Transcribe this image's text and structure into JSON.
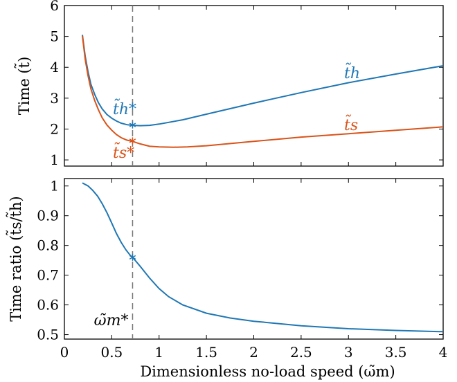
{
  "chart_data": [
    {
      "type": "line",
      "title": "",
      "xlabel": "",
      "ylabel": "Time  (t̃)",
      "xlim": [
        0,
        4
      ],
      "ylim": [
        0.8,
        6
      ],
      "yticks": [
        "1",
        "2",
        "3",
        "4",
        "5",
        "6"
      ],
      "grid": false,
      "legend": "none",
      "marker_x": 0.72,
      "series": [
        {
          "name": "t̃h",
          "color": "#1f77b4",
          "points": [
            [
              0.19,
              5.05
            ],
            [
              0.22,
              4.35
            ],
            [
              0.25,
              3.85
            ],
            [
              0.28,
              3.45
            ],
            [
              0.32,
              3.12
            ],
            [
              0.36,
              2.85
            ],
            [
              0.4,
              2.65
            ],
            [
              0.45,
              2.47
            ],
            [
              0.5,
              2.35
            ],
            [
              0.55,
              2.26
            ],
            [
              0.6,
              2.19
            ],
            [
              0.66,
              2.14
            ],
            [
              0.72,
              2.12
            ],
            [
              0.8,
              2.11
            ],
            [
              0.9,
              2.12
            ],
            [
              1.0,
              2.16
            ],
            [
              1.25,
              2.3
            ],
            [
              1.5,
              2.48
            ],
            [
              2.0,
              2.84
            ],
            [
              2.5,
              3.18
            ],
            [
              3.0,
              3.5
            ],
            [
              3.5,
              3.78
            ],
            [
              4.0,
              4.05
            ]
          ],
          "star": [
            0.72,
            2.13
          ],
          "label": "t̃h",
          "star_label": "t̃h*"
        },
        {
          "name": "t̃s",
          "color": "#d95319",
          "points": [
            [
              0.19,
              5.02
            ],
            [
              0.22,
              4.25
            ],
            [
              0.25,
              3.72
            ],
            [
              0.28,
              3.3
            ],
            [
              0.32,
              2.92
            ],
            [
              0.36,
              2.62
            ],
            [
              0.4,
              2.36
            ],
            [
              0.45,
              2.13
            ],
            [
              0.5,
              1.96
            ],
            [
              0.55,
              1.82
            ],
            [
              0.6,
              1.72
            ],
            [
              0.66,
              1.64
            ],
            [
              0.72,
              1.6
            ],
            [
              0.8,
              1.52
            ],
            [
              0.9,
              1.44
            ],
            [
              1.0,
              1.42
            ],
            [
              1.15,
              1.41
            ],
            [
              1.3,
              1.42
            ],
            [
              1.5,
              1.46
            ],
            [
              2.0,
              1.6
            ],
            [
              2.5,
              1.74
            ],
            [
              3.0,
              1.85
            ],
            [
              3.5,
              1.96
            ],
            [
              4.0,
              2.07
            ]
          ],
          "star": [
            0.72,
            1.62
          ],
          "label": "t̃s",
          "star_label": "t̃s*"
        }
      ]
    },
    {
      "type": "line",
      "title": "",
      "xlabel": "Dimensionless no-load speed  (ω̃m)",
      "ylabel": "Time ratio  (t̃s/t̃h)",
      "xlim": [
        0,
        4
      ],
      "ylim": [
        0.485,
        1.025
      ],
      "xticks": [
        "0",
        "0.5",
        "1",
        "1.5",
        "2",
        "2.5",
        "3",
        "3.5",
        "4"
      ],
      "yticks": [
        "0.5",
        "0.6",
        "0.7",
        "0.8",
        "0.9",
        "1"
      ],
      "grid": false,
      "legend": "none",
      "marker_x": 0.72,
      "marker_label": "ω̃m*",
      "series": [
        {
          "name": "ratio",
          "color": "#1f77b4",
          "points": [
            [
              0.19,
              1.01
            ],
            [
              0.25,
              1.0
            ],
            [
              0.3,
              0.985
            ],
            [
              0.35,
              0.966
            ],
            [
              0.4,
              0.94
            ],
            [
              0.45,
              0.91
            ],
            [
              0.5,
              0.875
            ],
            [
              0.55,
              0.84
            ],
            [
              0.6,
              0.81
            ],
            [
              0.65,
              0.785
            ],
            [
              0.7,
              0.765
            ],
            [
              0.72,
              0.76
            ],
            [
              0.8,
              0.73
            ],
            [
              0.9,
              0.69
            ],
            [
              1.0,
              0.655
            ],
            [
              1.1,
              0.628
            ],
            [
              1.25,
              0.6
            ],
            [
              1.5,
              0.572
            ],
            [
              1.75,
              0.556
            ],
            [
              2.0,
              0.545
            ],
            [
              2.5,
              0.53
            ],
            [
              3.0,
              0.52
            ],
            [
              3.5,
              0.514
            ],
            [
              4.0,
              0.51
            ]
          ],
          "star": [
            0.72,
            0.76
          ]
        }
      ]
    }
  ]
}
